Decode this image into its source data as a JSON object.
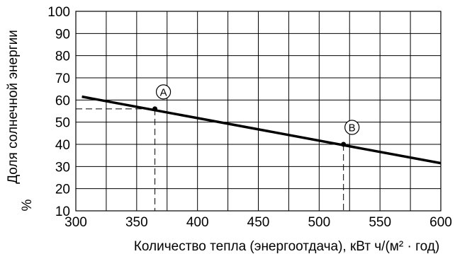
{
  "chart_data": {
    "type": "line",
    "xlabel": "Количество тепла (энергоотдача), кВт ч/(м² · год)",
    "ylabel_line1": "Доля солнечной энергии",
    "ylabel_line2": "%",
    "xlim": [
      300,
      600
    ],
    "ylim": [
      10,
      100
    ],
    "x_ticks": [
      300,
      350,
      400,
      450,
      500,
      550,
      600
    ],
    "y_ticks": [
      10,
      20,
      30,
      40,
      50,
      60,
      70,
      80,
      90,
      100
    ],
    "grid": true,
    "x_grid_step": 25,
    "y_grid_step": 10,
    "series": [
      {
        "x": [
          305,
          600
        ],
        "y": [
          61.5,
          31.5
        ]
      }
    ],
    "markers": [
      {
        "label": "A",
        "x": 365,
        "y": 56
      },
      {
        "label": "B",
        "x": 520,
        "y": 40
      }
    ],
    "colors": {
      "line": "#000000",
      "grid": "#000000"
    }
  }
}
